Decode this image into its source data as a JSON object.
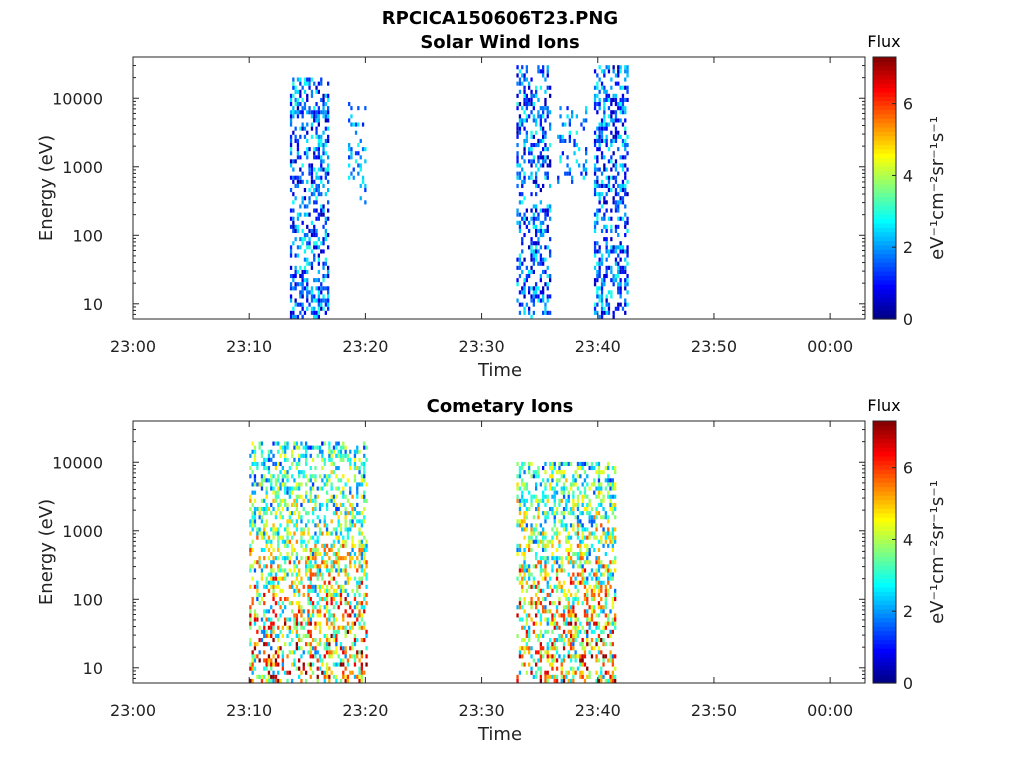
{
  "figure_title": "RPCICA150606T23.PNG",
  "colors": {
    "axis": "#262626",
    "background": "#ffffff"
  },
  "chart_data": [
    {
      "type": "heatmap",
      "title": "Solar Wind Ions",
      "xlabel": "Time",
      "ylabel": "Energy (eV)",
      "x_tick_labels": [
        "23:00",
        "23:10",
        "23:20",
        "23:30",
        "23:40",
        "23:50",
        "00:00"
      ],
      "y_tick_labels": [
        "10",
        "100",
        "1000",
        "10000"
      ],
      "y_scale": "log",
      "ylim": [
        6,
        40000
      ],
      "colorbar": {
        "label_top": "Flux",
        "label": "eV⁻¹cm⁻²sr⁻¹s⁻¹",
        "ticks": [
          "0",
          "2",
          "4",
          "6"
        ],
        "range": [
          0,
          7.3
        ],
        "colormap": "jet"
      },
      "clusters": [
        {
          "t_start": "23:13:30",
          "t_end": "23:16:50",
          "emin": 6,
          "emax": 20000,
          "fmin": 0.3,
          "fmax": 3.0,
          "density": 0.45
        },
        {
          "t_start": "23:18:30",
          "t_end": "23:20:00",
          "emin": 300,
          "emax": 9000,
          "fmin": 1.0,
          "fmax": 3.0,
          "density": 0.25
        },
        {
          "t_start": "23:33:00",
          "t_end": "23:36:00",
          "emin": 6,
          "emax": 30000,
          "fmin": 0.3,
          "fmax": 3.0,
          "density": 0.45
        },
        {
          "t_start": "23:36:30",
          "t_end": "23:39:00",
          "emin": 600,
          "emax": 8000,
          "fmin": 1.0,
          "fmax": 3.0,
          "density": 0.2
        },
        {
          "t_start": "23:39:40",
          "t_end": "23:42:30",
          "emin": 6,
          "emax": 30000,
          "fmin": 0.3,
          "fmax": 3.0,
          "density": 0.45
        }
      ]
    },
    {
      "type": "heatmap",
      "title": "Cometary Ions",
      "xlabel": "Time",
      "ylabel": "Energy (eV)",
      "x_tick_labels": [
        "23:00",
        "23:10",
        "23:20",
        "23:30",
        "23:40",
        "23:50",
        "00:00"
      ],
      "y_tick_labels": [
        "10",
        "100",
        "1000",
        "10000"
      ],
      "y_scale": "log",
      "ylim": [
        6,
        40000
      ],
      "colorbar": {
        "label_top": "Flux",
        "label": "eV⁻¹cm⁻²sr⁻¹s⁻¹",
        "ticks": [
          "0",
          "2",
          "4",
          "6"
        ],
        "range": [
          0,
          7.3
        ],
        "colormap": "jet"
      },
      "clusters": [
        {
          "t_start": "23:10:00",
          "t_end": "23:20:00",
          "emin": 6,
          "emax": 20000,
          "fmin": 1.5,
          "fmax": 6.5,
          "density": 0.45
        },
        {
          "t_start": "23:33:00",
          "t_end": "23:41:30",
          "emin": 6,
          "emax": 10000,
          "fmin": 1.5,
          "fmax": 6.5,
          "density": 0.45
        }
      ]
    }
  ]
}
